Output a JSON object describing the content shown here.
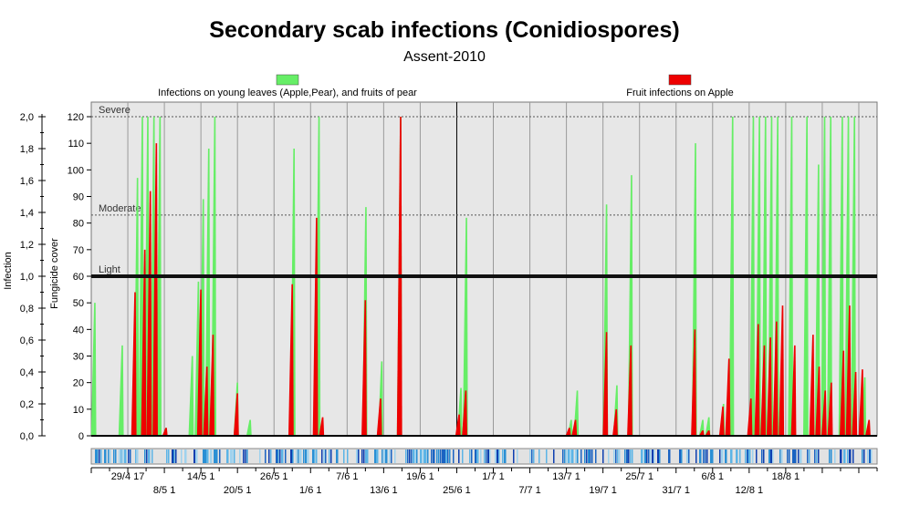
{
  "chart_data": {
    "type": "area",
    "title": "Secondary scab infections (Conidiospores)",
    "subtitle": "Assent-2010",
    "legend": [
      {
        "name": "Infections on young leaves (Apple,Pear), and fruits of pear",
        "color": "#66ee66"
      },
      {
        "name": "Fruit infections on Apple",
        "color": "#ee0000"
      }
    ],
    "left_axis": {
      "label": "Infection",
      "ylim": [
        0,
        2.0
      ],
      "ticks": [
        "0,0",
        "0,2",
        "0,4",
        "0,6",
        "0,8",
        "1,0",
        "1,2",
        "1,4",
        "1,6",
        "1,8",
        "2,0"
      ]
    },
    "right_axis": {
      "label": "Fungicide cover",
      "ylim": [
        0,
        120
      ],
      "ticks": [
        "0",
        "10",
        "20",
        "30",
        "40",
        "50",
        "60",
        "70",
        "80",
        "90",
        "100",
        "110",
        "120"
      ]
    },
    "levels": [
      {
        "name": "Severe",
        "value": 120
      },
      {
        "name": "Moderate",
        "value": 83
      },
      {
        "name": "Light",
        "value": 60
      }
    ],
    "x_labels_row1": [
      "29/4 17",
      "14/5 1",
      "26/5 1",
      "7/6 1",
      "19/6 1",
      "1/7 1",
      "13/7 1",
      "25/7 1",
      "6/8 1",
      "18/8 1"
    ],
    "x_labels_row2": [
      "8/5 1",
      "20/5 1",
      "1/6 1",
      "13/6 1",
      "25/6 1",
      "7/7 1",
      "19/7 1",
      "31/7 1",
      "12/8 1"
    ],
    "x_range_days": [
      0,
      129
    ],
    "green_events": [
      {
        "day": 0.5,
        "value": 50
      },
      {
        "day": 5,
        "value": 34
      },
      {
        "day": 7.5,
        "value": 97
      },
      {
        "day": 8.3,
        "value": 120
      },
      {
        "day": 9.2,
        "value": 120
      },
      {
        "day": 10.2,
        "value": 120
      },
      {
        "day": 11.2,
        "value": 120
      },
      {
        "day": 12.2,
        "value": 3
      },
      {
        "day": 16.5,
        "value": 30
      },
      {
        "day": 17.5,
        "value": 58
      },
      {
        "day": 18.3,
        "value": 89
      },
      {
        "day": 19.2,
        "value": 108
      },
      {
        "day": 20.2,
        "value": 120
      },
      {
        "day": 23.9,
        "value": 20
      },
      {
        "day": 26,
        "value": 6
      },
      {
        "day": 33.2,
        "value": 108
      },
      {
        "day": 37.3,
        "value": 120
      },
      {
        "day": 45,
        "value": 86
      },
      {
        "day": 47.6,
        "value": 28
      },
      {
        "day": 50.7,
        "value": 120
      },
      {
        "day": 60.6,
        "value": 18
      },
      {
        "day": 61.5,
        "value": 82
      },
      {
        "day": 78.7,
        "value": 6
      },
      {
        "day": 79.7,
        "value": 17
      },
      {
        "day": 84.5,
        "value": 87
      },
      {
        "day": 86.2,
        "value": 19
      },
      {
        "day": 88.6,
        "value": 98
      },
      {
        "day": 99.1,
        "value": 110
      },
      {
        "day": 100.3,
        "value": 6
      },
      {
        "day": 101.3,
        "value": 7
      },
      {
        "day": 103.7,
        "value": 12
      },
      {
        "day": 105.2,
        "value": 120
      },
      {
        "day": 108.6,
        "value": 120
      },
      {
        "day": 109.6,
        "value": 120
      },
      {
        "day": 110.6,
        "value": 120
      },
      {
        "day": 111.6,
        "value": 120
      },
      {
        "day": 112.6,
        "value": 120
      },
      {
        "day": 114.9,
        "value": 120
      },
      {
        "day": 117.4,
        "value": 120
      },
      {
        "day": 119.3,
        "value": 102
      },
      {
        "day": 120.3,
        "value": 120
      },
      {
        "day": 121.3,
        "value": 120
      },
      {
        "day": 123.2,
        "value": 120
      },
      {
        "day": 124.2,
        "value": 120
      },
      {
        "day": 125.2,
        "value": 120
      },
      {
        "day": 126.9,
        "value": 22
      }
    ],
    "red_events": [
      {
        "day": 7.1,
        "value": 54
      },
      {
        "day": 8.7,
        "value": 70
      },
      {
        "day": 9.6,
        "value": 92
      },
      {
        "day": 10.6,
        "value": 110
      },
      {
        "day": 12.2,
        "value": 3
      },
      {
        "day": 17.9,
        "value": 55
      },
      {
        "day": 18.9,
        "value": 26
      },
      {
        "day": 19.9,
        "value": 38
      },
      {
        "day": 23.9,
        "value": 16
      },
      {
        "day": 32.9,
        "value": 57
      },
      {
        "day": 36.9,
        "value": 82
      },
      {
        "day": 37.9,
        "value": 7
      },
      {
        "day": 44.9,
        "value": 51
      },
      {
        "day": 47.4,
        "value": 14
      },
      {
        "day": 50.7,
        "value": 120
      },
      {
        "day": 60.3,
        "value": 8
      },
      {
        "day": 61.4,
        "value": 17
      },
      {
        "day": 78.4,
        "value": 3
      },
      {
        "day": 79.4,
        "value": 6
      },
      {
        "day": 84.5,
        "value": 39
      },
      {
        "day": 86.1,
        "value": 10
      },
      {
        "day": 88.5,
        "value": 34
      },
      {
        "day": 99,
        "value": 40
      },
      {
        "day": 100.3,
        "value": 2
      },
      {
        "day": 101.3,
        "value": 2
      },
      {
        "day": 103.6,
        "value": 11
      },
      {
        "day": 104.6,
        "value": 29
      },
      {
        "day": 108.2,
        "value": 14
      },
      {
        "day": 109.4,
        "value": 42
      },
      {
        "day": 110.4,
        "value": 34
      },
      {
        "day": 111.4,
        "value": 37
      },
      {
        "day": 112.4,
        "value": 43
      },
      {
        "day": 113.4,
        "value": 49
      },
      {
        "day": 115.4,
        "value": 34
      },
      {
        "day": 118.4,
        "value": 38
      },
      {
        "day": 119.4,
        "value": 26
      },
      {
        "day": 120.4,
        "value": 17
      },
      {
        "day": 121.4,
        "value": 20
      },
      {
        "day": 123.4,
        "value": 32
      },
      {
        "day": 124.4,
        "value": 49
      },
      {
        "day": 125.4,
        "value": 24
      },
      {
        "day": 126.5,
        "value": 25
      },
      {
        "day": 127.6,
        "value": 6
      }
    ]
  }
}
